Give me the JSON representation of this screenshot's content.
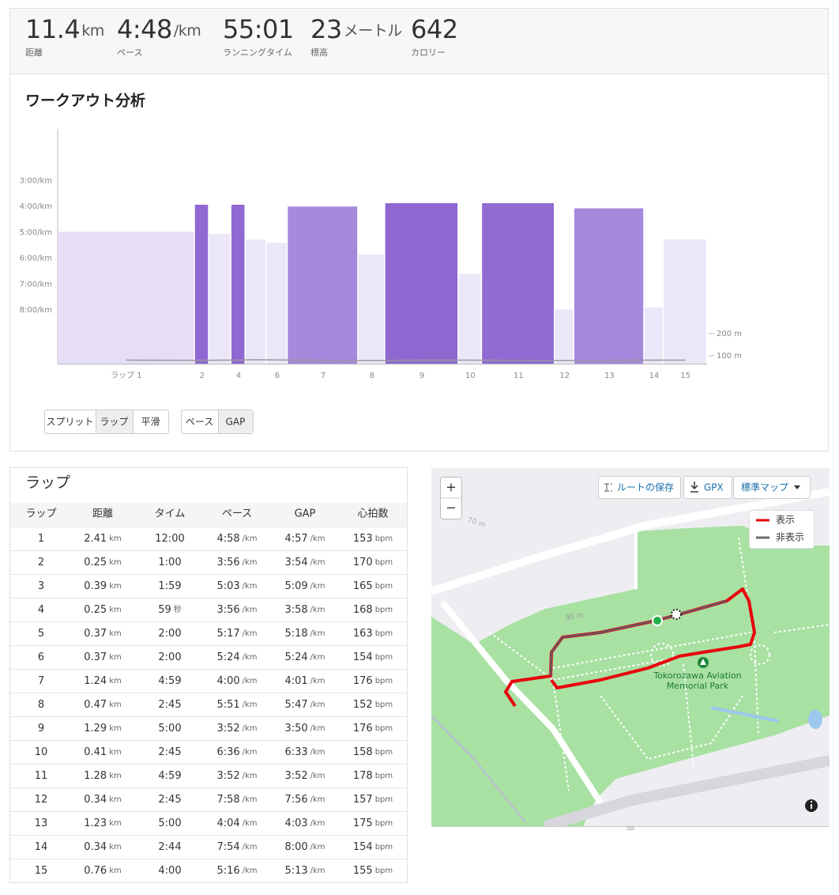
{
  "stats": [
    {
      "value": "11.4",
      "unit": "km",
      "label": "距離"
    },
    {
      "value": "4:48",
      "unit": "/km",
      "label": "ペース"
    },
    {
      "value": "55:01",
      "label": "ランニングタイム"
    },
    {
      "value": "23",
      "unit": "メートル",
      "label": "標高"
    },
    {
      "value": "642",
      "label": "カロリー"
    }
  ],
  "analysis": {
    "title": "ワークアウト分析",
    "view_buttons": [
      "スプリット",
      "ラップ",
      "平滑"
    ],
    "view_selected": 1,
    "metric_buttons": [
      "ペース",
      "GAP"
    ],
    "metric_selected": 1
  },
  "chart_data": {
    "type": "bar",
    "categories": [
      "ラップ 1",
      "2",
      null,
      "4",
      null,
      "6",
      "7",
      "8",
      "9",
      "10",
      "11",
      "12",
      "13",
      "14",
      "15"
    ],
    "values": [
      4.97,
      3.93,
      5.05,
      3.93,
      5.28,
      5.4,
      4.0,
      5.85,
      3.87,
      6.6,
      3.87,
      7.97,
      4.07,
      7.9,
      5.27
    ],
    "widths": [
      2.41,
      0.25,
      0.39,
      0.25,
      0.37,
      0.37,
      1.24,
      0.47,
      1.29,
      0.41,
      1.28,
      0.34,
      1.23,
      0.34,
      0.76
    ],
    "colors": [
      "#e6ddf7",
      "#8f68d1",
      "#ece6f9",
      "#8f68d1",
      "#ece6f9",
      "#ece6f9",
      "#a688dd",
      "#ece6f9",
      "#8e68d0",
      "#ece6f9",
      "#8f6bd2",
      "#ece6f9",
      "#a688dd",
      "#ece6f9",
      "#ece6f9"
    ],
    "ylim": [
      10.07,
      1.0
    ],
    "yticks": [
      {
        "value": 3,
        "label": "3:00/km"
      },
      {
        "value": 4,
        "label": "4:00/km"
      },
      {
        "value": 5,
        "label": "5:00/km"
      },
      {
        "value": 6,
        "label": "6:00/km"
      },
      {
        "value": 7,
        "label": "7:00/km"
      },
      {
        "value": 8,
        "label": "8:00/km"
      }
    ],
    "y2lim": [
      64,
      1125
    ],
    "y2ticks": [
      {
        "value": 100,
        "label": "100 m"
      },
      {
        "value": 200,
        "label": "200 m"
      }
    ],
    "elevation_values": [
      80,
      79,
      80,
      80,
      82,
      81,
      79,
      78,
      80,
      80,
      79,
      78,
      79,
      80,
      80
    ],
    "elevation_color": "#9a9a9a",
    "grid": false
  },
  "laps": {
    "title": "ラップ",
    "headers": [
      "ラップ",
      "距離",
      "タイム",
      "ペース",
      "GAP",
      "心拍数"
    ],
    "rows": [
      [
        [
          "1"
        ],
        [
          "2.41",
          "km"
        ],
        [
          "12:00"
        ],
        [
          "4:58",
          "/km"
        ],
        [
          "4:57",
          "/km"
        ],
        [
          "153",
          "bpm"
        ]
      ],
      [
        [
          "2"
        ],
        [
          "0.25",
          "km"
        ],
        [
          "1:00"
        ],
        [
          "3:56",
          "/km"
        ],
        [
          "3:54",
          "/km"
        ],
        [
          "170",
          "bpm"
        ]
      ],
      [
        [
          "3"
        ],
        [
          "0.39",
          "km"
        ],
        [
          "1:59"
        ],
        [
          "5:03",
          "/km"
        ],
        [
          "5:09",
          "/km"
        ],
        [
          "165",
          "bpm"
        ]
      ],
      [
        [
          "4"
        ],
        [
          "0.25",
          "km"
        ],
        [
          "59",
          "秒"
        ],
        [
          "3:56",
          "/km"
        ],
        [
          "3:58",
          "/km"
        ],
        [
          "168",
          "bpm"
        ]
      ],
      [
        [
          "5"
        ],
        [
          "0.37",
          "km"
        ],
        [
          "2:00"
        ],
        [
          "5:17",
          "/km"
        ],
        [
          "5:18",
          "/km"
        ],
        [
          "163",
          "bpm"
        ]
      ],
      [
        [
          "6"
        ],
        [
          "0.37",
          "km"
        ],
        [
          "2:00"
        ],
        [
          "5:24",
          "/km"
        ],
        [
          "5:24",
          "/km"
        ],
        [
          "154",
          "bpm"
        ]
      ],
      [
        [
          "7"
        ],
        [
          "1.24",
          "km"
        ],
        [
          "4:59"
        ],
        [
          "4:00",
          "/km"
        ],
        [
          "4:01",
          "/km"
        ],
        [
          "176",
          "bpm"
        ]
      ],
      [
        [
          "8"
        ],
        [
          "0.47",
          "km"
        ],
        [
          "2:45"
        ],
        [
          "5:51",
          "/km"
        ],
        [
          "5:47",
          "/km"
        ],
        [
          "152",
          "bpm"
        ]
      ],
      [
        [
          "9"
        ],
        [
          "1.29",
          "km"
        ],
        [
          "5:00"
        ],
        [
          "3:52",
          "/km"
        ],
        [
          "3:50",
          "/km"
        ],
        [
          "176",
          "bpm"
        ]
      ],
      [
        [
          "10"
        ],
        [
          "0.41",
          "km"
        ],
        [
          "2:45"
        ],
        [
          "6:36",
          "/km"
        ],
        [
          "6:33",
          "/km"
        ],
        [
          "158",
          "bpm"
        ]
      ],
      [
        [
          "11"
        ],
        [
          "1.28",
          "km"
        ],
        [
          "4:59"
        ],
        [
          "3:52",
          "/km"
        ],
        [
          "3:52",
          "/km"
        ],
        [
          "178",
          "bpm"
        ]
      ],
      [
        [
          "12"
        ],
        [
          "0.34",
          "km"
        ],
        [
          "2:45"
        ],
        [
          "7:58",
          "/km"
        ],
        [
          "7:56",
          "/km"
        ],
        [
          "157",
          "bpm"
        ]
      ],
      [
        [
          "13"
        ],
        [
          "1.23",
          "km"
        ],
        [
          "5:00"
        ],
        [
          "4:04",
          "/km"
        ],
        [
          "4:03",
          "/km"
        ],
        [
          "175",
          "bpm"
        ]
      ],
      [
        [
          "14"
        ],
        [
          "0.34",
          "km"
        ],
        [
          "2:44"
        ],
        [
          "7:54",
          "/km"
        ],
        [
          "8:00",
          "/km"
        ],
        [
          "154",
          "bpm"
        ]
      ],
      [
        [
          "15"
        ],
        [
          "0.76",
          "km"
        ],
        [
          "4:00"
        ],
        [
          "5:16",
          "/km"
        ],
        [
          "5:13",
          "/km"
        ],
        [
          "155",
          "bpm"
        ]
      ]
    ]
  },
  "map": {
    "zoom_in": "+",
    "zoom_out": "−",
    "save_route": "ルートの保存",
    "gpx": "GPX",
    "map_type": "標準マップ",
    "legend": [
      "表示",
      "非表示"
    ],
    "park_label": [
      "Tokorozawa Aviation",
      "Memorial Park"
    ],
    "contours": [
      "70 m",
      "90 m"
    ]
  }
}
